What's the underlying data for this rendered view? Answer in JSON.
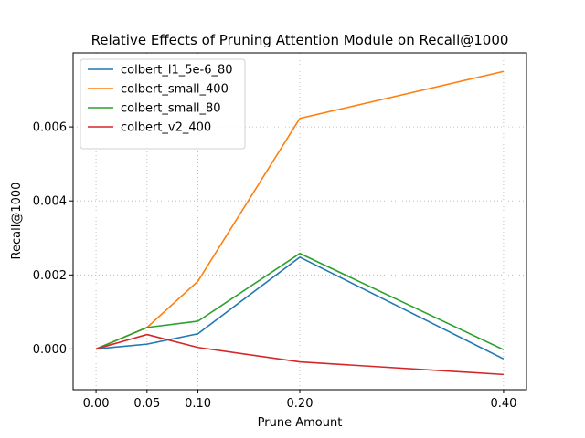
{
  "chart_data": {
    "type": "line",
    "title": "Relative Effects of Pruning Attention Module on Recall@1000",
    "xlabel": "Prune Amount",
    "ylabel": "Recall@1000",
    "x": [
      0.0,
      0.05,
      0.1,
      0.2,
      0.4
    ],
    "x_tick_labels": [
      "0.00",
      "0.05",
      "0.10",
      "0.20",
      "0.40"
    ],
    "xlim": [
      -0.0225,
      0.4225
    ],
    "ylim": [
      -0.0011,
      0.008
    ],
    "y_ticks": [
      0.0,
      0.002,
      0.004,
      0.006
    ],
    "y_tick_labels": [
      "0.000",
      "0.002",
      "0.004",
      "0.006"
    ],
    "grid": true,
    "legend_position": "upper-left",
    "series": [
      {
        "name": "colbert_l1_5e-6_80",
        "color": "#1f77b4",
        "values": [
          0.0,
          0.00013,
          0.00041,
          0.00248,
          -0.00027
        ]
      },
      {
        "name": "colbert_small_400",
        "color": "#ff7f0e",
        "values": [
          0.0,
          0.00058,
          0.00183,
          0.00623,
          0.0075
        ]
      },
      {
        "name": "colbert_small_80",
        "color": "#2ca02c",
        "values": [
          0.0,
          0.00058,
          0.00075,
          0.00258,
          -2e-05
        ]
      },
      {
        "name": "colbert_v2_400",
        "color": "#d62728",
        "values": [
          0.0,
          0.00039,
          4e-05,
          -0.00035,
          -0.00069
        ]
      }
    ]
  }
}
